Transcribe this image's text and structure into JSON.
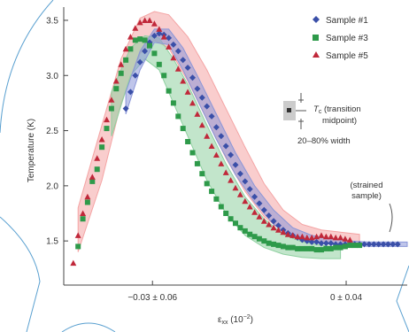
{
  "chart_data": {
    "type": "scatter",
    "title": "",
    "ylabel": "Temperature (K)",
    "xlabel_main": "ε",
    "xlabel_sub": "xx",
    "xlabel_unit": " (10",
    "xlabel_exp": "−2",
    "xlabel_close": ")",
    "xlim": [
      -1.0,
      2.6
    ],
    "ylim": [
      1.1,
      3.62
    ],
    "grid": false,
    "legend_position": "top-right",
    "yticks": [
      {
        "value": 1.5,
        "label": "1.5"
      },
      {
        "value": 2.0,
        "label": "2.0"
      },
      {
        "value": 2.5,
        "label": "2.5"
      },
      {
        "value": 3.0,
        "label": "3.0"
      },
      {
        "value": 3.5,
        "label": "3.5"
      }
    ],
    "xticks": [
      {
        "value": -0.07,
        "label": "−0.03 ± 0.06"
      },
      {
        "value": 1.96,
        "label": "0 ± 0.04"
      }
    ],
    "colors": {
      "sample1": "#3a4fa8",
      "sample3": "#2e9a4a",
      "sample5": "#c0283a",
      "band1": "#8a96d8",
      "band3": "#8fd0a0",
      "band5": "#f4a4a4",
      "axis": "#444444"
    },
    "series": [
      {
        "name": "Sample #1",
        "marker": "diamond",
        "color_key": "sample1",
        "x": [
          -0.35,
          -0.3,
          -0.25,
          -0.2,
          -0.15,
          -0.1,
          -0.05,
          0.0,
          0.05,
          0.1,
          0.15,
          0.2,
          0.25,
          0.3,
          0.35,
          0.4,
          0.45,
          0.5,
          0.55,
          0.6,
          0.65,
          0.7,
          0.75,
          0.8,
          0.85,
          0.9,
          0.95,
          1.0,
          1.05,
          1.1,
          1.15,
          1.2,
          1.25,
          1.3,
          1.35,
          1.4,
          1.45,
          1.5,
          1.55,
          1.6,
          1.65,
          1.7,
          1.75,
          1.8,
          1.85,
          1.9,
          1.95,
          2.0,
          2.05,
          2.1,
          2.15,
          2.2,
          2.25,
          2.3,
          2.35,
          2.4,
          2.45,
          2.5
        ],
        "y": [
          2.7,
          2.85,
          3.0,
          3.12,
          3.22,
          3.3,
          3.36,
          3.38,
          3.37,
          3.34,
          3.28,
          3.22,
          3.14,
          3.07,
          2.98,
          2.88,
          2.8,
          2.72,
          2.63,
          2.53,
          2.45,
          2.36,
          2.28,
          2.19,
          2.11,
          2.04,
          1.97,
          1.9,
          1.84,
          1.78,
          1.73,
          1.68,
          1.64,
          1.6,
          1.57,
          1.55,
          1.53,
          1.51,
          1.5,
          1.49,
          1.49,
          1.48,
          1.48,
          1.48,
          1.47,
          1.47,
          1.47,
          1.47,
          1.47,
          1.47,
          1.47,
          1.47,
          1.47,
          1.47,
          1.47,
          1.47,
          1.47,
          1.47
        ]
      },
      {
        "name": "Sample #3",
        "marker": "square",
        "color_key": "sample3",
        "x": [
          -0.85,
          -0.8,
          -0.75,
          -0.7,
          -0.65,
          -0.6,
          -0.55,
          -0.5,
          -0.45,
          -0.4,
          -0.35,
          -0.3,
          -0.25,
          -0.2,
          -0.15,
          -0.1,
          -0.05,
          0.0,
          0.05,
          0.1,
          0.15,
          0.2,
          0.25,
          0.3,
          0.35,
          0.4,
          0.45,
          0.5,
          0.55,
          0.6,
          0.65,
          0.7,
          0.75,
          0.8,
          0.85,
          0.9,
          0.95,
          1.0,
          1.05,
          1.1,
          1.15,
          1.2,
          1.25,
          1.3,
          1.35,
          1.4,
          1.45,
          1.5,
          1.55,
          1.6,
          1.65,
          1.7,
          1.75,
          1.8,
          1.85,
          1.9,
          1.95,
          2.0,
          2.05,
          2.1
        ],
        "y": [
          1.45,
          1.7,
          1.85,
          2.04,
          2.15,
          2.35,
          2.52,
          2.7,
          2.88,
          3.02,
          3.14,
          3.24,
          3.32,
          3.33,
          3.32,
          3.27,
          3.2,
          3.1,
          3.0,
          2.86,
          2.75,
          2.63,
          2.52,
          2.4,
          2.3,
          2.2,
          2.11,
          2.02,
          1.95,
          1.88,
          1.81,
          1.75,
          1.7,
          1.66,
          1.62,
          1.59,
          1.56,
          1.54,
          1.52,
          1.5,
          1.48,
          1.47,
          1.46,
          1.45,
          1.44,
          1.44,
          1.43,
          1.43,
          1.43,
          1.43,
          1.42,
          1.42,
          1.43,
          1.43,
          1.44,
          1.44,
          1.45,
          1.46,
          1.46,
          1.46
        ]
      },
      {
        "name": "Sample #5",
        "marker": "triangle",
        "color_key": "sample5",
        "x": [
          -0.9,
          -0.85,
          -0.8,
          -0.75,
          -0.7,
          -0.65,
          -0.6,
          -0.55,
          -0.5,
          -0.45,
          -0.4,
          -0.35,
          -0.3,
          -0.25,
          -0.2,
          -0.15,
          -0.1,
          -0.05,
          0.0,
          0.05,
          0.1,
          0.15,
          0.2,
          0.25,
          0.3,
          0.35,
          0.4,
          0.45,
          0.5,
          0.55,
          0.6,
          0.65,
          0.7,
          0.75,
          0.8,
          0.85,
          0.9,
          0.95,
          1.0,
          1.05,
          1.1,
          1.15,
          1.2,
          1.25,
          1.3,
          1.35,
          1.4,
          1.45,
          1.5,
          1.55,
          1.6,
          1.65,
          1.7,
          1.75,
          1.8,
          1.85,
          1.9,
          1.95,
          2.0
        ],
        "y": [
          1.3,
          1.55,
          1.75,
          1.9,
          2.08,
          2.25,
          2.42,
          2.6,
          2.78,
          2.95,
          3.1,
          3.24,
          3.35,
          3.43,
          3.48,
          3.5,
          3.5,
          3.47,
          3.42,
          3.35,
          3.26,
          3.16,
          3.06,
          2.95,
          2.85,
          2.75,
          2.65,
          2.55,
          2.45,
          2.36,
          2.28,
          2.2,
          2.12,
          2.05,
          1.98,
          1.92,
          1.86,
          1.81,
          1.76,
          1.72,
          1.68,
          1.65,
          1.62,
          1.6,
          1.58,
          1.56,
          1.55,
          1.54,
          1.54,
          1.53,
          1.53,
          1.54,
          1.55,
          1.54,
          1.54,
          1.53,
          1.53,
          1.52,
          1.51
        ]
      }
    ],
    "bands": [
      {
        "color_key": "band5",
        "x": [
          -0.85,
          -0.6,
          -0.4,
          -0.2,
          -0.05,
          0.1,
          0.3,
          0.5,
          0.7,
          0.9,
          1.1,
          1.3,
          1.5,
          1.7,
          1.9,
          2.1
        ],
        "upper": [
          1.8,
          2.55,
          3.15,
          3.52,
          3.58,
          3.55,
          3.35,
          3.05,
          2.7,
          2.35,
          2.02,
          1.78,
          1.65,
          1.6,
          1.58,
          1.56
        ],
        "lower": [
          1.4,
          2.05,
          2.75,
          3.2,
          3.32,
          3.25,
          2.95,
          2.6,
          2.25,
          1.95,
          1.72,
          1.58,
          1.5,
          1.48,
          1.47,
          1.47
        ]
      },
      {
        "color_key": "band3",
        "x": [
          -0.5,
          -0.3,
          -0.15,
          0.0,
          0.15,
          0.3,
          0.5,
          0.7,
          0.9,
          1.1,
          1.3,
          1.5,
          1.7,
          1.9
        ],
        "upper": [
          2.85,
          3.25,
          3.36,
          3.34,
          3.15,
          2.92,
          2.55,
          2.2,
          1.9,
          1.7,
          1.56,
          1.49,
          1.46,
          1.44
        ],
        "lower": [
          2.45,
          3.0,
          3.15,
          3.05,
          2.75,
          2.45,
          2.05,
          1.75,
          1.55,
          1.44,
          1.38,
          1.35,
          1.34,
          1.34
        ]
      },
      {
        "color_key": "band1",
        "x": [
          -0.35,
          -0.2,
          -0.05,
          0.1,
          0.25,
          0.4,
          0.6,
          0.8,
          1.0,
          1.2,
          1.4,
          1.6,
          1.8,
          2.0,
          2.2,
          2.4,
          2.6
        ],
        "upper": [
          2.85,
          3.22,
          3.42,
          3.42,
          3.25,
          3.0,
          2.65,
          2.3,
          2.0,
          1.78,
          1.62,
          1.55,
          1.52,
          1.5,
          1.49,
          1.49,
          1.49
        ],
        "lower": [
          2.65,
          3.05,
          3.3,
          3.28,
          3.05,
          2.78,
          2.42,
          2.1,
          1.85,
          1.65,
          1.54,
          1.49,
          1.47,
          1.46,
          1.45,
          1.45,
          1.45
        ]
      }
    ],
    "annotations": {
      "transition_line1": "T",
      "transition_sub": "c",
      "transition_line1_rest": " (transition",
      "transition_line2": "midpoint)",
      "width_label": "20–80% width",
      "bulk_line1": "(strained",
      "bulk_line2": "sample)"
    }
  }
}
